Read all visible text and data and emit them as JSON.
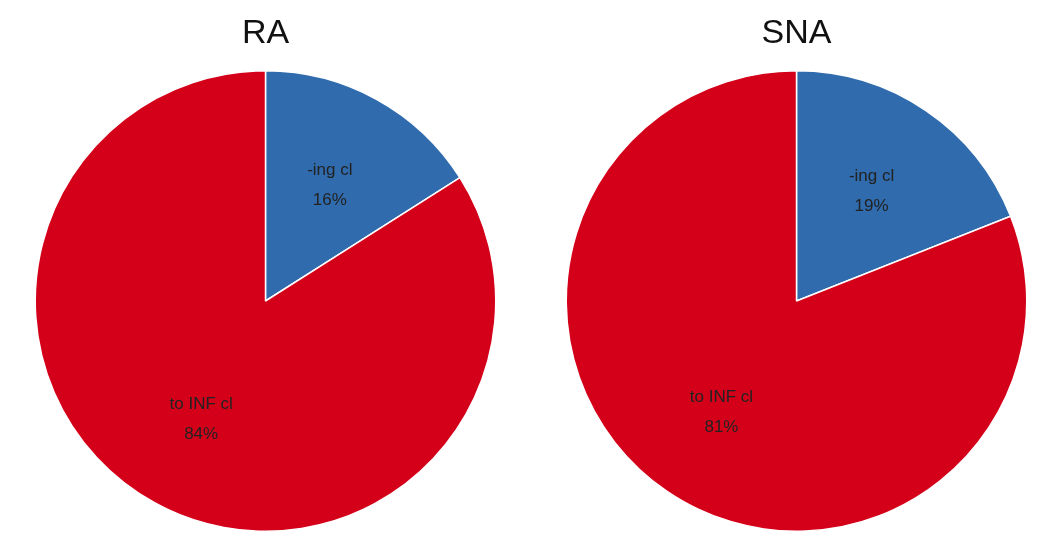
{
  "chart_data": [
    {
      "type": "pie",
      "title": "RA",
      "categories": [
        "-ing cl",
        "to INF cl"
      ],
      "values": [
        16,
        84
      ],
      "value_labels": [
        "16%",
        "84%"
      ],
      "colors": [
        "#2f6bad",
        "#d4001a"
      ],
      "legend": false
    },
    {
      "type": "pie",
      "title": "SNA",
      "categories": [
        "-ing cl",
        "to INF cl"
      ],
      "values": [
        19,
        81
      ],
      "value_labels": [
        "19%",
        "81%"
      ],
      "colors": [
        "#2f6bad",
        "#d4001a"
      ],
      "legend": false
    }
  ]
}
